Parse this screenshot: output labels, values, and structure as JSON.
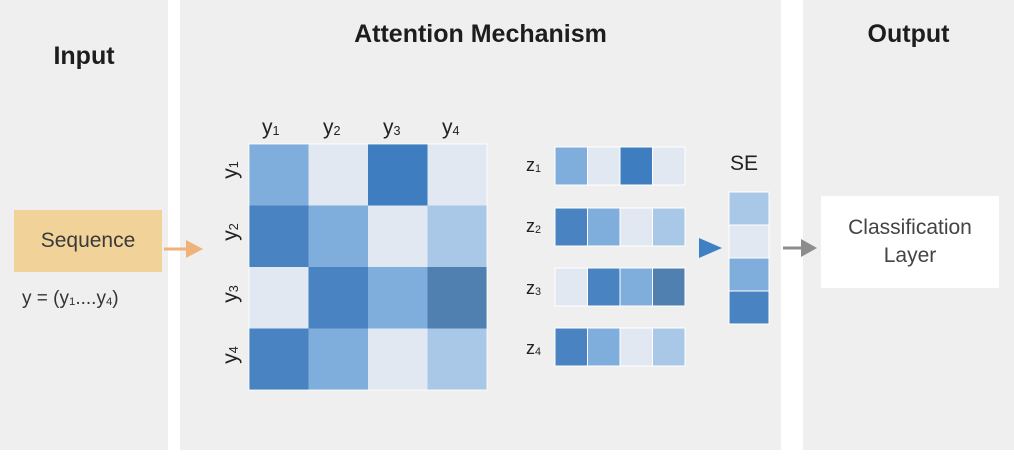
{
  "input": {
    "title": "Input",
    "sequence_label": "Sequence",
    "formula_prefix": "y = (y",
    "formula_sub1": "1",
    "formula_mid": "....y",
    "formula_sub2": "4",
    "formula_suffix": ")"
  },
  "attention": {
    "title": "Attention Mechanism",
    "col_labels": [
      {
        "base": "y",
        "sub": "1"
      },
      {
        "base": "y",
        "sub": "2"
      },
      {
        "base": "y",
        "sub": "3"
      },
      {
        "base": "y",
        "sub": "4"
      }
    ],
    "row_labels": [
      {
        "base": "y",
        "sub": "1"
      },
      {
        "base": "y",
        "sub": "2"
      },
      {
        "base": "y",
        "sub": "3"
      },
      {
        "base": "y",
        "sub": "4"
      }
    ],
    "matrix": [
      [
        "#7faedc",
        "#e1e8f1",
        "#3e7dbf",
        "#e1e8f1"
      ],
      [
        "#4a83c1",
        "#7faedc",
        "#e1e8f1",
        "#a9c7e6"
      ],
      [
        "#e1e8f1",
        "#4a83c1",
        "#7faedc",
        "#4f80b0"
      ],
      [
        "#4a83c1",
        "#7faedc",
        "#e1e8f1",
        "#a9c7e6"
      ]
    ],
    "z_labels": [
      {
        "base": "z",
        "sub": "1"
      },
      {
        "base": "z",
        "sub": "2"
      },
      {
        "base": "z",
        "sub": "3"
      },
      {
        "base": "z",
        "sub": "4"
      }
    ],
    "z_vectors": [
      [
        "#7faedc",
        "#e1e8f1",
        "#3e7dbf",
        "#e1e8f1"
      ],
      [
        "#4a83c1",
        "#7faedc",
        "#e1e8f1",
        "#a9c7e6"
      ],
      [
        "#e1e8f1",
        "#4a83c1",
        "#7faedc",
        "#4f80b0"
      ],
      [
        "#4a83c1",
        "#7faedc",
        "#e1e8f1",
        "#a9c7e6"
      ]
    ],
    "se_label": "SE",
    "se_vector": [
      "#a9c7e6",
      "#e1e8f1",
      "#7faedc",
      "#4a83c1"
    ]
  },
  "output": {
    "title": "Output",
    "classification_line1": "Classification",
    "classification_line2": "Layer"
  },
  "colors": {
    "panel_bg": "#efefef",
    "sequence_bg": "#f1d39a",
    "input_arrow": "#f0b27a",
    "se_arrow": "#3f7fc4",
    "output_arrow": "#8c8c8c",
    "grid_line": "#ffffff"
  }
}
